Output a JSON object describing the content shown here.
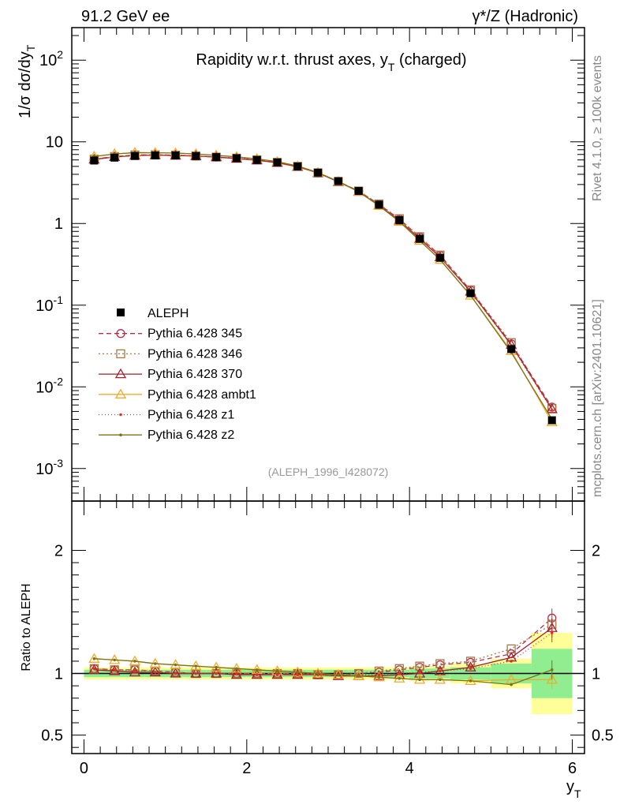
{
  "header": {
    "left": "91.2 GeV ee",
    "right": "γ*/Z (Hadronic)"
  },
  "side_labels": {
    "rivet": "Rivet 4.1.0, ≥ 100k events",
    "mcplots": "mcplots.cern.ch [arXiv:2401.10621]"
  },
  "chart_data": {
    "type": "line",
    "title": "Rapidity w.r.t. thrust axes, y_T (charged)",
    "analysis": "(ALEPH_1996_I428072)",
    "xlabel": "y_T",
    "ylabel": "1/σ  dσ/dy_T",
    "ratio_ylabel": "Ratio to ALEPH",
    "xlim": [
      -0.15,
      6.15
    ],
    "ylim_log": [
      0.0004,
      250
    ],
    "ratio_ylim": [
      0.35,
      2.4
    ],
    "x_ticks": [
      "0",
      "2",
      "4",
      "6"
    ],
    "y_ticks": [
      "10^-3",
      "10^-2",
      "10^-1",
      "1",
      "10",
      "10^2"
    ],
    "ratio_ticks": [
      "0.5",
      "1",
      "2"
    ],
    "x": [
      0.125,
      0.375,
      0.625,
      0.875,
      1.125,
      1.375,
      1.625,
      1.875,
      2.125,
      2.375,
      2.625,
      2.875,
      3.125,
      3.375,
      3.625,
      3.875,
      4.125,
      4.375,
      4.75,
      5.25,
      5.75
    ],
    "bin_edges": [
      0,
      0.25,
      0.5,
      0.75,
      1.0,
      1.25,
      1.5,
      1.75,
      2.0,
      2.25,
      2.5,
      2.75,
      3.0,
      3.25,
      3.5,
      3.75,
      4.0,
      4.25,
      4.5,
      5.0,
      5.5,
      6.0
    ],
    "data": {
      "name": "ALEPH",
      "values": [
        5.9,
        6.4,
        6.7,
        6.8,
        6.8,
        6.7,
        6.5,
        6.3,
        6.0,
        5.6,
        5.0,
        4.2,
        3.3,
        2.5,
        1.7,
        1.1,
        0.65,
        0.38,
        0.14,
        0.029,
        0.0039
      ],
      "band_inner": [
        0.03,
        0.03,
        0.03,
        0.03,
        0.03,
        0.03,
        0.03,
        0.03,
        0.03,
        0.03,
        0.03,
        0.03,
        0.03,
        0.03,
        0.03,
        0.03,
        0.04,
        0.04,
        0.05,
        0.08,
        0.2
      ],
      "band_outer": [
        0.05,
        0.05,
        0.05,
        0.05,
        0.05,
        0.05,
        0.05,
        0.05,
        0.05,
        0.05,
        0.05,
        0.05,
        0.05,
        0.05,
        0.05,
        0.05,
        0.06,
        0.06,
        0.08,
        0.12,
        0.33
      ]
    },
    "series": [
      {
        "name": "Pythia 6.428 345",
        "color": "#b2324c",
        "dash": "6,4",
        "marker": "circle",
        "ratio": [
          1.04,
          1.03,
          1.03,
          1.02,
          1.01,
          1.0,
          1.0,
          1.0,
          1.0,
          1.0,
          1.0,
          0.99,
          0.99,
          1.0,
          1.01,
          1.03,
          1.05,
          1.07,
          1.09,
          1.16,
          1.45
        ]
      },
      {
        "name": "Pythia 6.428 346",
        "color": "#a77845",
        "dash": "2,3",
        "marker": "square",
        "ratio": [
          1.04,
          1.03,
          1.03,
          1.02,
          1.01,
          1.0,
          1.0,
          1.0,
          1.0,
          1.0,
          1.0,
          0.99,
          0.99,
          1.0,
          1.02,
          1.04,
          1.06,
          1.08,
          1.1,
          1.2,
          1.4
        ]
      },
      {
        "name": "Pythia 6.428 370",
        "color": "#a31f2e",
        "dash": "",
        "marker": "triangle",
        "ratio": [
          1.03,
          1.02,
          1.01,
          1.01,
          1.0,
          1.0,
          1.0,
          0.99,
          0.99,
          0.99,
          0.99,
          0.99,
          0.98,
          0.98,
          0.98,
          0.99,
          1.0,
          1.02,
          1.05,
          1.13,
          1.37
        ]
      },
      {
        "name": "Pythia 6.428 ambt1",
        "color": "#f1a92c",
        "dash": "",
        "marker": "triangle",
        "ratio": [
          1.12,
          1.11,
          1.1,
          1.08,
          1.07,
          1.06,
          1.05,
          1.04,
          1.03,
          1.02,
          1.01,
          1.0,
          0.99,
          0.98,
          0.97,
          0.96,
          0.95,
          0.95,
          0.94,
          0.95,
          0.95
        ]
      },
      {
        "name": "Pythia 6.428 z1",
        "color": "#e03020",
        "dash": "1,3",
        "marker": "dot",
        "ratio": [
          1.04,
          1.03,
          1.02,
          1.01,
          1.0,
          1.0,
          1.0,
          1.0,
          0.99,
          0.99,
          0.99,
          0.99,
          0.99,
          0.99,
          0.99,
          1.0,
          1.01,
          1.02,
          1.04,
          1.1,
          1.33
        ]
      },
      {
        "name": "Pythia 6.428 z2",
        "color": "#7a7416",
        "dash": "",
        "marker": "dot",
        "ratio": [
          1.12,
          1.11,
          1.1,
          1.08,
          1.07,
          1.06,
          1.05,
          1.04,
          1.03,
          1.02,
          1.01,
          1.0,
          0.99,
          0.98,
          0.97,
          0.96,
          0.95,
          0.95,
          0.94,
          0.91,
          1.03
        ]
      }
    ]
  }
}
